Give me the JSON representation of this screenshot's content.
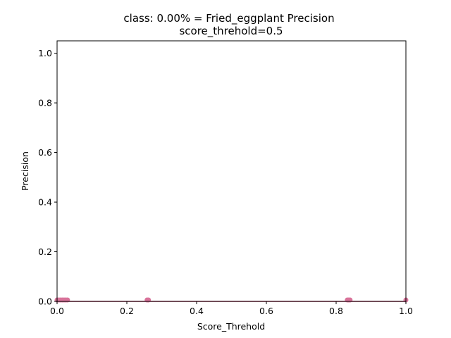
{
  "chart_data": {
    "type": "scatter",
    "title": "class: 0.00% = Fried_eggplant Precision",
    "subtitle": "score_threhold=0.5",
    "xlabel": "Score_Threhold",
    "ylabel": "Precision",
    "xlim": [
      0.0,
      1.0
    ],
    "ylim": [
      0.0,
      1.05
    ],
    "xticks": [
      "0.0",
      "0.2",
      "0.4",
      "0.6",
      "0.8",
      "1.0"
    ],
    "yticks": [
      "0.0",
      "0.2",
      "0.4",
      "0.6",
      "0.8",
      "1.0"
    ],
    "grid": false,
    "marker_color": "#d9739a",
    "line_color": "#c0305f",
    "series": [
      {
        "x": [
          0.0,
          0.005,
          0.01,
          0.015,
          0.02,
          0.025,
          0.03,
          0.258,
          0.262,
          0.832,
          0.836,
          0.84,
          1.0
        ],
        "y": [
          0,
          0,
          0,
          0,
          0,
          0,
          0,
          0,
          0,
          0,
          0,
          0,
          0
        ]
      }
    ]
  }
}
